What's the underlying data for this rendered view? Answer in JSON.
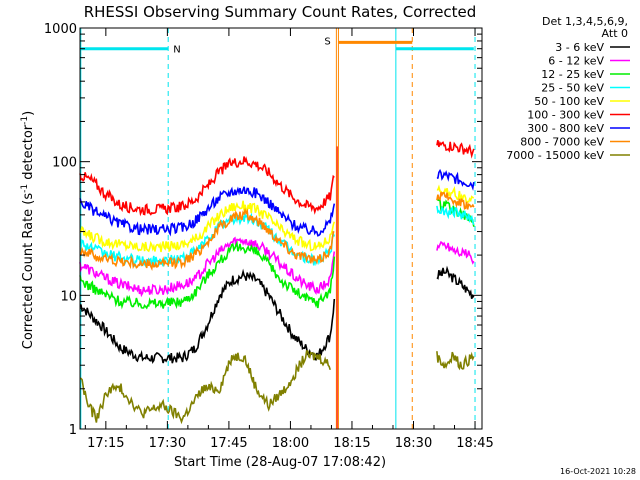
{
  "chart_data": {
    "type": "line",
    "title": "RHESSI Observing Summary Count Rates, Corrected",
    "xlabel": "Start Time (28-Aug-07 17:08:42)",
    "ylabel_main": "Corrected Count Rate (s",
    "ylabel_sup1": "-1",
    "ylabel_mid": " detector",
    "ylabel_sup2": "-1",
    "ylabel_end": ")",
    "y_scale": "log",
    "ylim": [
      1,
      1000
    ],
    "xlim_minutes": [
      0,
      98
    ],
    "x_ticks": [
      {
        "label": "17:15",
        "minutes": 6.3
      },
      {
        "label": "17:30",
        "minutes": 21.3
      },
      {
        "label": "17:45",
        "minutes": 36.3
      },
      {
        "label": "18:00",
        "minutes": 51.3
      },
      {
        "label": "18:15",
        "minutes": 66.3
      },
      {
        "label": "18:30",
        "minutes": 81.3
      },
      {
        "label": "18:45",
        "minutes": 96.3
      }
    ],
    "y_ticks": [
      {
        "label": "1",
        "value": 1
      },
      {
        "label": "10",
        "value": 10
      },
      {
        "label": "100",
        "value": 100
      },
      {
        "label": "1000",
        "value": 1000
      }
    ],
    "legend_header": [
      "Det 1,3,4,5,6,9,",
      "Att 0"
    ],
    "legend_position": "right",
    "series": [
      {
        "name": "3 - 6 keV",
        "color": "#000000",
        "points": [
          [
            0,
            8.5
          ],
          [
            5,
            6
          ],
          [
            10,
            4
          ],
          [
            15,
            3.4
          ],
          [
            20,
            3.4
          ],
          [
            25,
            3.4
          ],
          [
            28,
            4
          ],
          [
            31,
            6
          ],
          [
            34,
            10
          ],
          [
            37,
            13
          ],
          [
            40,
            14
          ],
          [
            43,
            13
          ],
          [
            46,
            10
          ],
          [
            49,
            7
          ],
          [
            52,
            5
          ],
          [
            55,
            4
          ],
          [
            58,
            3.5
          ],
          [
            61,
            5
          ],
          [
            62,
            9
          ]
        ],
        "late": [
          [
            87,
            14
          ],
          [
            89,
            15
          ],
          [
            91,
            13.5
          ],
          [
            93,
            12
          ],
          [
            96,
            10
          ]
        ]
      },
      {
        "name": "6 - 12 keV",
        "color": "#ff00ff",
        "points": [
          [
            0,
            17
          ],
          [
            5,
            14
          ],
          [
            10,
            12
          ],
          [
            15,
            11
          ],
          [
            20,
            11
          ],
          [
            25,
            12
          ],
          [
            28,
            13
          ],
          [
            31,
            17
          ],
          [
            34,
            21
          ],
          [
            37,
            25
          ],
          [
            40,
            26
          ],
          [
            43,
            24
          ],
          [
            46,
            21
          ],
          [
            49,
            17
          ],
          [
            52,
            14
          ],
          [
            55,
            12
          ],
          [
            58,
            11
          ],
          [
            61,
            13
          ],
          [
            62,
            20
          ]
        ],
        "late": [
          [
            87,
            23
          ],
          [
            89,
            24
          ],
          [
            91,
            22
          ],
          [
            93,
            21
          ],
          [
            96,
            19
          ]
        ]
      },
      {
        "name": "12 - 25 keV",
        "color": "#00ee00",
        "points": [
          [
            0,
            13
          ],
          [
            5,
            10.5
          ],
          [
            10,
            9
          ],
          [
            15,
            8.7
          ],
          [
            20,
            8.7
          ],
          [
            25,
            9
          ],
          [
            28,
            10.5
          ],
          [
            31,
            14
          ],
          [
            34,
            18
          ],
          [
            37,
            22
          ],
          [
            40,
            23
          ],
          [
            43,
            21
          ],
          [
            46,
            17
          ],
          [
            49,
            13
          ],
          [
            52,
            11
          ],
          [
            55,
            9.5
          ],
          [
            58,
            8.8
          ],
          [
            61,
            11
          ],
          [
            62,
            18
          ]
        ],
        "late": [
          [
            87,
            48
          ],
          [
            89,
            47
          ],
          [
            91,
            44
          ],
          [
            93,
            40
          ],
          [
            96,
            35
          ]
        ]
      },
      {
        "name": "25 - 50 keV",
        "color": "#00ffff",
        "points": [
          [
            0,
            25
          ],
          [
            5,
            21
          ],
          [
            10,
            19
          ],
          [
            15,
            18
          ],
          [
            20,
            18
          ],
          [
            25,
            19
          ],
          [
            28,
            21
          ],
          [
            31,
            26
          ],
          [
            34,
            33
          ],
          [
            37,
            37
          ],
          [
            40,
            38
          ],
          [
            43,
            36
          ],
          [
            46,
            31
          ],
          [
            49,
            25
          ],
          [
            52,
            21
          ],
          [
            55,
            19
          ],
          [
            58,
            18
          ],
          [
            61,
            21
          ],
          [
            62,
            30
          ]
        ],
        "late": [
          [
            87,
            44
          ],
          [
            89,
            43
          ],
          [
            91,
            42
          ],
          [
            93,
            40
          ],
          [
            96,
            37
          ]
        ]
      },
      {
        "name": "50 - 100 keV",
        "color": "#ffff00",
        "points": [
          [
            0,
            30
          ],
          [
            5,
            26
          ],
          [
            10,
            24
          ],
          [
            15,
            23
          ],
          [
            20,
            23
          ],
          [
            25,
            24
          ],
          [
            28,
            26
          ],
          [
            31,
            32
          ],
          [
            34,
            40
          ],
          [
            37,
            46
          ],
          [
            40,
            47
          ],
          [
            43,
            44
          ],
          [
            46,
            38
          ],
          [
            49,
            31
          ],
          [
            52,
            27
          ],
          [
            55,
            24
          ],
          [
            58,
            23
          ],
          [
            61,
            27
          ],
          [
            62,
            38
          ]
        ],
        "late": [
          [
            87,
            60
          ],
          [
            89,
            62
          ],
          [
            91,
            58
          ],
          [
            93,
            55
          ],
          [
            96,
            50
          ]
        ]
      },
      {
        "name": "100 - 300 keV",
        "color": "#ff0000",
        "points": [
          [
            0,
            80
          ],
          [
            3,
            72
          ],
          [
            6,
            58
          ],
          [
            10,
            47
          ],
          [
            15,
            44
          ],
          [
            20,
            44
          ],
          [
            25,
            46
          ],
          [
            28,
            52
          ],
          [
            31,
            65
          ],
          [
            34,
            84
          ],
          [
            37,
            98
          ],
          [
            40,
            102
          ],
          [
            43,
            96
          ],
          [
            46,
            83
          ],
          [
            49,
            66
          ],
          [
            52,
            54
          ],
          [
            55,
            47
          ],
          [
            58,
            45
          ],
          [
            61,
            55
          ],
          [
            62,
            80
          ]
        ],
        "late": [
          [
            87,
            133
          ],
          [
            89,
            132
          ],
          [
            91,
            130
          ],
          [
            93,
            125
          ],
          [
            96,
            118
          ]
        ]
      },
      {
        "name": "300 - 800 keV",
        "color": "#0000ff",
        "points": [
          [
            0,
            50
          ],
          [
            5,
            40
          ],
          [
            10,
            34
          ],
          [
            15,
            31
          ],
          [
            20,
            31
          ],
          [
            25,
            32
          ],
          [
            28,
            36
          ],
          [
            31,
            44
          ],
          [
            34,
            54
          ],
          [
            37,
            60
          ],
          [
            40,
            62
          ],
          [
            43,
            58
          ],
          [
            46,
            50
          ],
          [
            49,
            40
          ],
          [
            52,
            34
          ],
          [
            55,
            31
          ],
          [
            58,
            30
          ],
          [
            61,
            35
          ],
          [
            62,
            50
          ]
        ],
        "late": [
          [
            87,
            78
          ],
          [
            89,
            79
          ],
          [
            91,
            75
          ],
          [
            93,
            72
          ],
          [
            96,
            68
          ]
        ]
      },
      {
        "name": "800 - 7000 keV",
        "color": "#ff8800",
        "points": [
          [
            0,
            22
          ],
          [
            5,
            19
          ],
          [
            10,
            18
          ],
          [
            15,
            17
          ],
          [
            20,
            17
          ],
          [
            25,
            18
          ],
          [
            28,
            20
          ],
          [
            31,
            25
          ],
          [
            34,
            32
          ],
          [
            37,
            38
          ],
          [
            40,
            40
          ],
          [
            43,
            37
          ],
          [
            46,
            31
          ],
          [
            49,
            25
          ],
          [
            52,
            21
          ],
          [
            55,
            19
          ],
          [
            58,
            18
          ],
          [
            61,
            22
          ],
          [
            62,
            30
          ]
        ],
        "late": [
          [
            87,
            55
          ],
          [
            89,
            54
          ],
          [
            91,
            52
          ],
          [
            93,
            50
          ],
          [
            96,
            45
          ]
        ]
      },
      {
        "name": "7000 - 15000 keV",
        "color": "#808000",
        "points": [
          [
            0,
            2.5
          ],
          [
            2,
            1.5
          ],
          [
            4,
            1.2
          ],
          [
            7,
            2
          ],
          [
            10,
            2
          ],
          [
            15,
            1.3
          ],
          [
            20,
            1.5
          ],
          [
            25,
            1.2
          ],
          [
            30,
            2
          ],
          [
            34,
            2
          ],
          [
            37,
            3.5
          ],
          [
            40,
            3.5
          ],
          [
            43,
            2
          ],
          [
            46,
            1.5
          ],
          [
            50,
            2
          ],
          [
            55,
            3.5
          ],
          [
            58,
            3.5
          ],
          [
            61,
            3
          ]
        ],
        "late": [
          [
            87,
            3.5
          ],
          [
            89,
            3
          ],
          [
            91,
            3.5
          ],
          [
            93,
            3
          ],
          [
            96,
            3.5
          ]
        ]
      }
    ],
    "markers": [
      {
        "label": "N",
        "x_start": 0,
        "x_end": 21.5,
        "value": 700,
        "color": "#00e5ee"
      },
      {
        "label": "S",
        "x_start": 63,
        "x_end": 81,
        "value": 780,
        "color": "#ff8800"
      },
      {
        "label": "",
        "x_start": 77,
        "x_end": 96,
        "value": 700,
        "color": "#00e5ee"
      }
    ],
    "vlines": [
      {
        "x": 0.2,
        "color": "#00e5ee",
        "dashed": false
      },
      {
        "x": 21.5,
        "color": "#00e5ee",
        "dashed": true
      },
      {
        "x": 62.5,
        "color": "#ff8800",
        "dashed": false
      },
      {
        "x": 63,
        "color": "#ff8800",
        "dashed": false
      },
      {
        "x": 77,
        "color": "#00e5ee",
        "dashed": false
      },
      {
        "x": 81,
        "color": "#ff8800",
        "dashed": true
      },
      {
        "x": 96.3,
        "color": "#00e5ee",
        "dashed": true
      }
    ],
    "gap_minutes": [
      63.5,
      86.5
    ],
    "footer": "16-Oct-2021 10:28"
  }
}
